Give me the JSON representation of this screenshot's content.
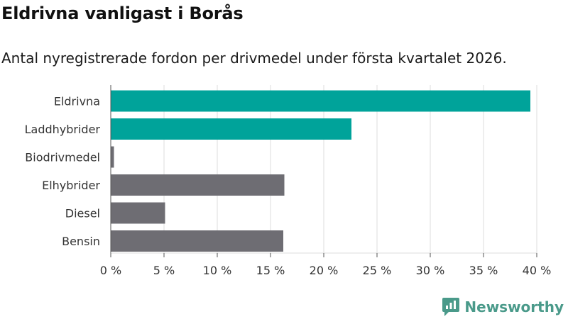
{
  "title": "Eldrivna vanligast i Borås",
  "subtitle": "Antal nyregistrerade fordon per drivmedel under första kvartalet 2026.",
  "brand": {
    "name": "Newsworthy",
    "icon": "newsworthy-logo-icon",
    "color": "#4a9a8a"
  },
  "chart_data": {
    "type": "bar",
    "orientation": "horizontal",
    "title": "Eldrivna vanligast i Borås",
    "subtitle": "Antal nyregistrerade fordon per drivmedel under första kvartalet 2026.",
    "xlabel": "",
    "ylabel": "",
    "unit": "%",
    "categories": [
      "Eldrivna",
      "Laddhybrider",
      "Biodrivmedel",
      "Elhybrider",
      "Diesel",
      "Bensin"
    ],
    "values": [
      39.4,
      22.6,
      0.3,
      16.3,
      5.1,
      16.2
    ],
    "colors": [
      "#00a39a",
      "#00a39a",
      "#6e6d73",
      "#6e6d73",
      "#6e6d73",
      "#6e6d73"
    ],
    "xlim": [
      0,
      40
    ],
    "xticks": [
      0,
      5,
      10,
      15,
      20,
      25,
      30,
      35,
      40
    ],
    "xtick_labels": [
      "0 %",
      "5 %",
      "10 %",
      "15 %",
      "20 %",
      "25 %",
      "30 %",
      "35 %",
      "40 %"
    ],
    "grid": true,
    "legend": "none"
  }
}
